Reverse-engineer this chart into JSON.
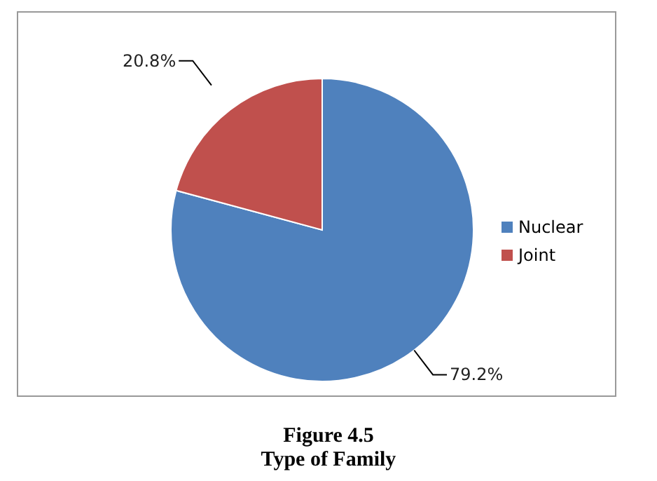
{
  "chart_data": {
    "type": "pie",
    "title": "Figure 4.5",
    "subtitle": "Type of Family",
    "categories": [
      "Nuclear",
      "Joint"
    ],
    "values": [
      79.2,
      20.8
    ],
    "colors": [
      "#4f81bd",
      "#c0504d"
    ],
    "value_labels": [
      "79.2%",
      "20.8%"
    ],
    "legend": "right"
  }
}
